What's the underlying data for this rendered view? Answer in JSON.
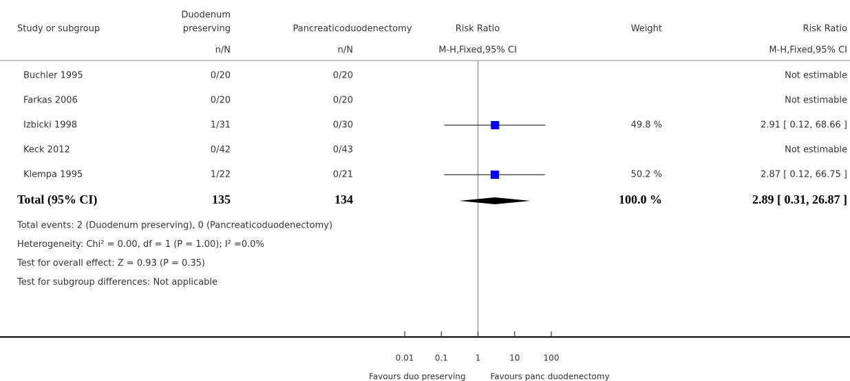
{
  "chart_data": {
    "type": "forest",
    "headers": {
      "study": "Study or subgroup",
      "experimental": [
        "Duodenum",
        "preserving"
      ],
      "control": "Pancreaticoduodenectomy",
      "plot": "Risk Ratio",
      "weight": "Weight",
      "result": "Risk Ratio"
    },
    "subheaders": {
      "experimental": "n/N",
      "control": "n/N",
      "plot": "M-H,Fixed,95% CI",
      "result": "M-H,Fixed,95% CI"
    },
    "studies": [
      {
        "name": "Buchler 1995",
        "experimental": "0/20",
        "control": "0/20",
        "rr": null,
        "lo": null,
        "hi": null,
        "weight": null,
        "weight_label": null,
        "ci_label": "Not estimable"
      },
      {
        "name": "Farkas 2006",
        "experimental": "0/20",
        "control": "0/20",
        "rr": null,
        "lo": null,
        "hi": null,
        "weight": null,
        "weight_label": null,
        "ci_label": "Not estimable"
      },
      {
        "name": "Izbicki 1998",
        "experimental": "1/31",
        "control": "0/30",
        "rr": 2.91,
        "lo": 0.12,
        "hi": 68.66,
        "weight": 49.8,
        "weight_label": "49.8 %",
        "ci_label": "2.91 [ 0.12, 68.66 ]"
      },
      {
        "name": "Keck 2012",
        "experimental": "0/42",
        "control": "0/43",
        "rr": null,
        "lo": null,
        "hi": null,
        "weight": null,
        "weight_label": null,
        "ci_label": "Not estimable"
      },
      {
        "name": "Klempa 1995",
        "experimental": "1/22",
        "control": "0/21",
        "rr": 2.87,
        "lo": 0.12,
        "hi": 66.75,
        "weight": 50.2,
        "weight_label": "50.2 %",
        "ci_label": "2.87 [ 0.12, 66.75 ]"
      }
    ],
    "total": {
      "name": "Total (95% CI)",
      "experimental": 135,
      "control": 134,
      "rr": 2.89,
      "lo": 0.31,
      "hi": 26.87,
      "weight": 100.0,
      "weight_label": "100.0 %",
      "ci_label": "2.89 [ 0.31, 26.87 ]"
    },
    "footnotes": [
      "Total events: 2 (Duodenum preserving), 0 (Pancreaticoduodenectomy)",
      "Heterogeneity: Chi² = 0.00, df = 1 (P = 1.00); I² =0.0%",
      "Test for overall effect: Z = 0.93 (P = 0.35)",
      "Test for subgroup differences: Not applicable"
    ],
    "xscale": "log",
    "xlim": [
      0.01,
      100
    ],
    "xticks": [
      0.01,
      0.1,
      1,
      10,
      100
    ],
    "xlabels": [
      "Favours duo preserving",
      "Favours panc duodenectomy"
    ],
    "color": "#0000ff"
  }
}
